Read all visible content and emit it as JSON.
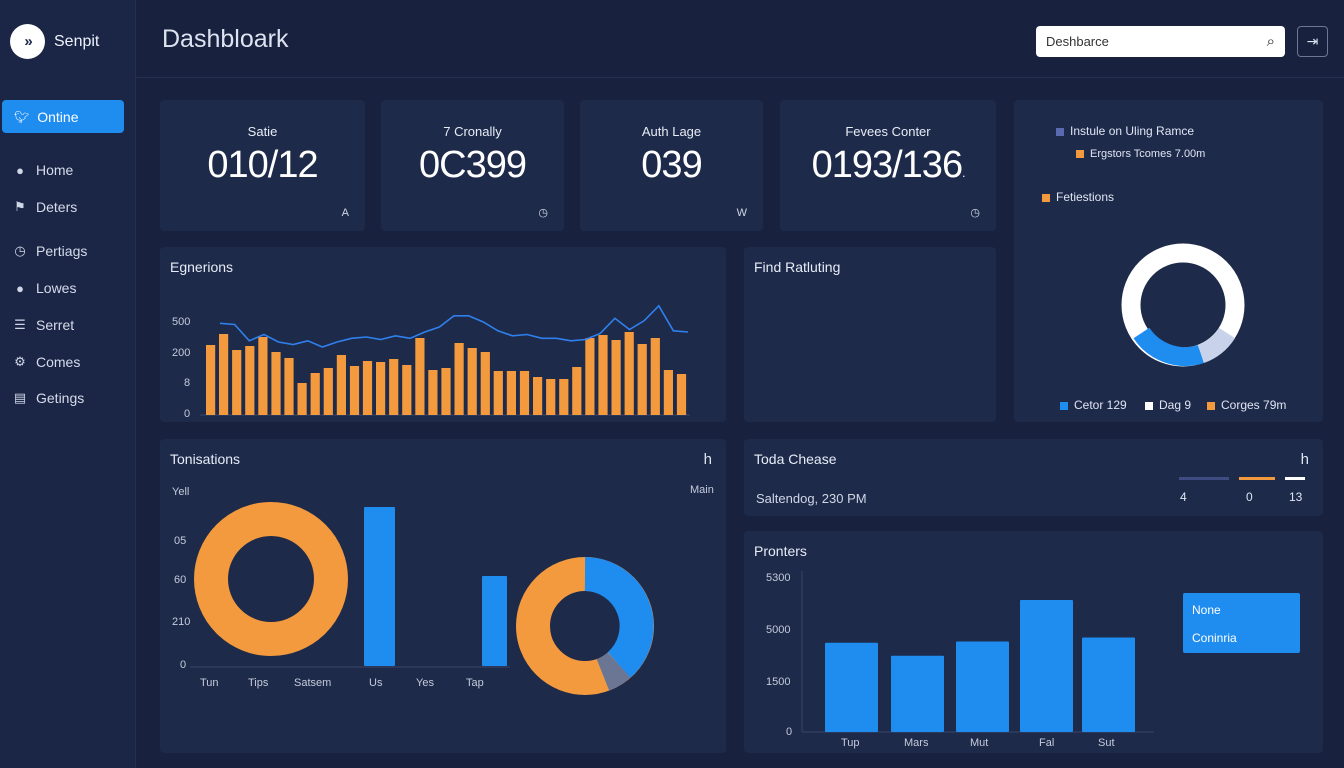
{
  "brand": {
    "name": "Senpit"
  },
  "sidebar": {
    "active": {
      "label": "Ontine",
      "icon": "bird-icon"
    },
    "items": [
      {
        "label": "Home",
        "icon": "user-icon"
      },
      {
        "label": "Deters",
        "icon": "flag-icon"
      },
      {
        "label": "Pertiags",
        "icon": "clock-icon"
      },
      {
        "label": "Lowes",
        "icon": "user-icon"
      },
      {
        "label": "Serret",
        "icon": "list-icon"
      },
      {
        "label": "Comes",
        "icon": "gear-icon"
      },
      {
        "label": "Getings",
        "icon": "settings-list-icon"
      }
    ]
  },
  "header": {
    "title": "Dashbloark",
    "search_placeholder": "Deshbarce",
    "logout_icon": "logout-icon"
  },
  "stats": [
    {
      "label": "Satie",
      "value": "010/12",
      "mini": "A"
    },
    {
      "label": "7 Cronally",
      "value": "0C399",
      "mini": "◷"
    },
    {
      "label": "Auth Lage",
      "value": "039",
      "mini": "W"
    },
    {
      "label": "Fevees Conter",
      "value": "0193/136",
      "value_suffix": ".",
      "mini": "◷"
    }
  ],
  "donut_panel": {
    "legend_top": [
      {
        "label": "Instule on Uling Ramce",
        "color": "#5a6ab0"
      },
      {
        "label": "Ergstors Tcomes 7.00m",
        "color": "#f39a3e"
      },
      {
        "label": "Fetiestions",
        "color": "#f39a3e"
      }
    ],
    "legend_bottom": [
      {
        "label": "Cetor 129",
        "color": "#1f8cf0"
      },
      {
        "label": "Dag 9",
        "color": "#ffffff"
      },
      {
        "label": "Corges 79m",
        "color": "#f39a3e"
      }
    ]
  },
  "engagement": {
    "title": "Egnerions",
    "y_ticks": [
      "500",
      "200",
      "8",
      "0"
    ]
  },
  "find_panel": {
    "title": "Find Ratluting"
  },
  "transactions": {
    "title": "Tonisations",
    "corner": "h",
    "y_title": "Yell",
    "right_label": "Main",
    "y_ticks": [
      "05",
      "60",
      "210",
      "0"
    ],
    "x_labels": [
      "Tun",
      "Tips",
      "Satsem",
      "Us",
      "Yes",
      "Tap"
    ]
  },
  "today": {
    "title": "Toda Chease",
    "subtitle": "Saltendog, 230 PM",
    "corner": "h",
    "values": [
      "4",
      "0",
      "13"
    ]
  },
  "printers": {
    "title": "Pronters",
    "legend_items": [
      "None",
      "Coninria"
    ]
  },
  "chart_data": [
    {
      "type": "bar",
      "title": "Egnerions",
      "ylim": [
        0,
        500
      ],
      "values": [
        70,
        81,
        65,
        69,
        78,
        63,
        57,
        32,
        42,
        47,
        60,
        49,
        54,
        53,
        56,
        50,
        77,
        45,
        47,
        72,
        67,
        63,
        44,
        44,
        44,
        38,
        36,
        36,
        48,
        77,
        80,
        75,
        83,
        71,
        77,
        45,
        41
      ],
      "line_values": [
        27,
        26,
        13,
        18,
        12,
        10,
        13,
        8,
        12,
        15,
        16,
        14,
        17,
        15,
        20,
        24,
        33,
        33,
        28,
        21,
        17,
        18,
        15,
        15,
        13,
        14,
        19,
        31,
        22,
        29,
        41,
        21,
        20
      ],
      "colors": {
        "bar": "#f39a3e",
        "line": "#2f80ed"
      }
    },
    {
      "type": "bar",
      "title": "Pronters",
      "categories": [
        "Tup",
        "Mars",
        "Mut",
        "Fal",
        "Sut"
      ],
      "values": [
        2900,
        2480,
        2940,
        4290,
        3070
      ],
      "y_ticks": [
        "5300",
        "5000",
        "1500",
        "0"
      ],
      "color": "#1f8cf0"
    }
  ],
  "colors": {
    "accent": "#1f8cf0",
    "orange": "#f39a3e",
    "card": "#1e2a4a",
    "background": "#18213d"
  }
}
